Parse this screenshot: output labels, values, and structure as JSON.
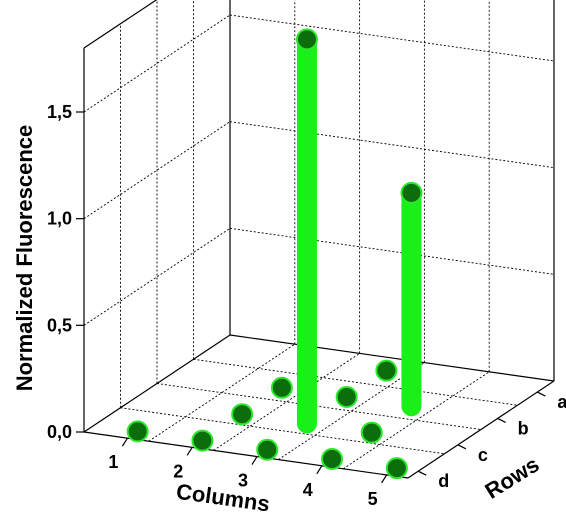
{
  "chart_data": {
    "type": "bar3d",
    "title": "",
    "xlabel": "Columns",
    "ylabel": "Rows",
    "zlabel": "Normalized Fluorescence",
    "columns": [
      "1",
      "2",
      "3",
      "4",
      "5"
    ],
    "rows": [
      "a",
      "b",
      "c",
      "d"
    ],
    "z_ticks": [
      "0,0",
      "0,5",
      "1,0",
      "1,5"
    ],
    "zlim": [
      0,
      1.8
    ],
    "grid": true,
    "colors": {
      "bar": "#19ef19",
      "marker": "#0b6d0b",
      "marker_edge": "#2ee62e"
    },
    "points": [
      {
        "column": 1,
        "row": "d",
        "value": 0.0
      },
      {
        "column": 2,
        "row": "d",
        "value": 0.0
      },
      {
        "column": 2,
        "row": "c",
        "value": 0.0
      },
      {
        "column": 2,
        "row": "b",
        "value": 0.0
      },
      {
        "column": 3,
        "row": "d",
        "value": 0.0
      },
      {
        "column": 3,
        "row": "c",
        "value": 1.8
      },
      {
        "column": 3,
        "row": "b",
        "value": 0.0
      },
      {
        "column": 3,
        "row": "a",
        "value": 0.0
      },
      {
        "column": 4,
        "row": "d",
        "value": 0.0
      },
      {
        "column": 4,
        "row": "b",
        "value": 1.0
      },
      {
        "column": 4,
        "row": "c",
        "value": 0.0
      },
      {
        "column": 5,
        "row": "d",
        "value": 0.0
      }
    ]
  }
}
